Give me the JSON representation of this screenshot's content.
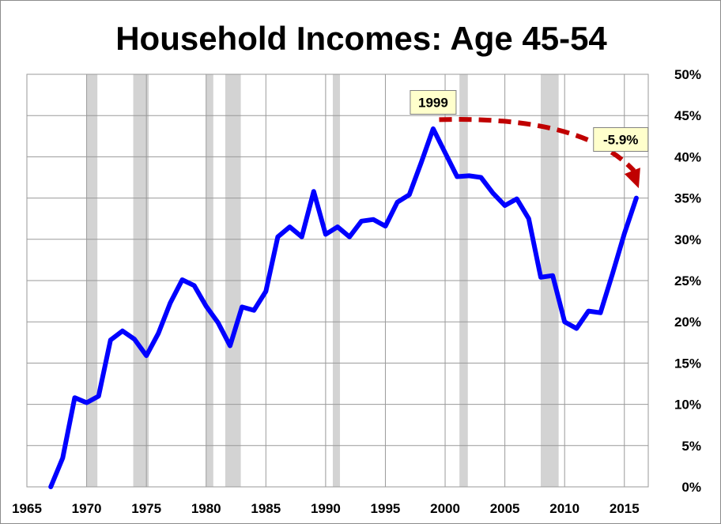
{
  "chart_data": {
    "type": "line",
    "title": "Household Incomes: Age 45-54",
    "xlabel": "",
    "ylabel": "",
    "xlim": [
      1965,
      2017
    ],
    "ylim": [
      0,
      50
    ],
    "x_ticks": [
      1965,
      1970,
      1975,
      1980,
      1985,
      1990,
      1995,
      2000,
      2005,
      2010,
      2015
    ],
    "y_ticks": [
      0,
      5,
      10,
      15,
      20,
      25,
      30,
      35,
      40,
      45,
      50
    ],
    "y_tick_labels": [
      "0%",
      "5%",
      "10%",
      "15%",
      "20%",
      "25%",
      "30%",
      "35%",
      "40%",
      "45%",
      "50%"
    ],
    "grid": true,
    "y_axis_position": "right",
    "line_color": "#0000ff",
    "recession_color": "#d3d3d3",
    "recessions": [
      {
        "start": 1970.0,
        "end": 1970.9
      },
      {
        "start": 1973.9,
        "end": 1975.2
      },
      {
        "start": 1980.0,
        "end": 1980.6
      },
      {
        "start": 1981.6,
        "end": 1982.9
      },
      {
        "start": 1990.6,
        "end": 1991.2
      },
      {
        "start": 2001.2,
        "end": 2001.9
      },
      {
        "start": 2008.0,
        "end": 2009.5
      }
    ],
    "series": [
      {
        "x": [
          1967,
          1968,
          1969,
          1970,
          1971,
          1972,
          1973,
          1974,
          1975,
          1976,
          1977,
          1978,
          1979,
          1980,
          1981,
          1982,
          1983,
          1984,
          1985,
          1986,
          1987,
          1988,
          1989,
          1990,
          1991,
          1992,
          1993,
          1994,
          1995,
          1996,
          1997,
          1998,
          1999,
          2000,
          2001,
          2002,
          2003,
          2004,
          2005,
          2006,
          2007,
          2008,
          2009,
          2010,
          2011,
          2012,
          2013,
          2014,
          2015,
          2016
        ],
        "values": [
          0.0,
          3.5,
          10.8,
          10.2,
          11.0,
          17.8,
          18.9,
          17.9,
          15.9,
          18.6,
          22.3,
          25.1,
          24.4,
          21.9,
          19.9,
          17.1,
          21.8,
          21.4,
          23.7,
          30.3,
          31.5,
          30.3,
          35.8,
          30.6,
          31.5,
          30.3,
          32.2,
          32.4,
          31.6,
          34.5,
          35.4,
          39.3,
          43.4,
          40.5,
          37.6,
          37.7,
          37.5,
          35.6,
          34.1,
          34.9,
          32.5,
          25.4,
          25.6,
          20.0,
          19.2,
          21.3,
          21.1,
          25.8,
          30.7,
          35.0
        ]
      }
    ],
    "annotations": [
      {
        "text": "1999",
        "x": 1999,
        "y": 46.6
      },
      {
        "text": "-5.9%",
        "x": 2014.7,
        "y": 42.1
      }
    ],
    "arrow": {
      "from": [
        1999.5,
        44.5
      ],
      "control": [
        2011.5,
        45.0
      ],
      "to": [
        2016.2,
        36.2
      ],
      "color": "#c00000"
    }
  }
}
